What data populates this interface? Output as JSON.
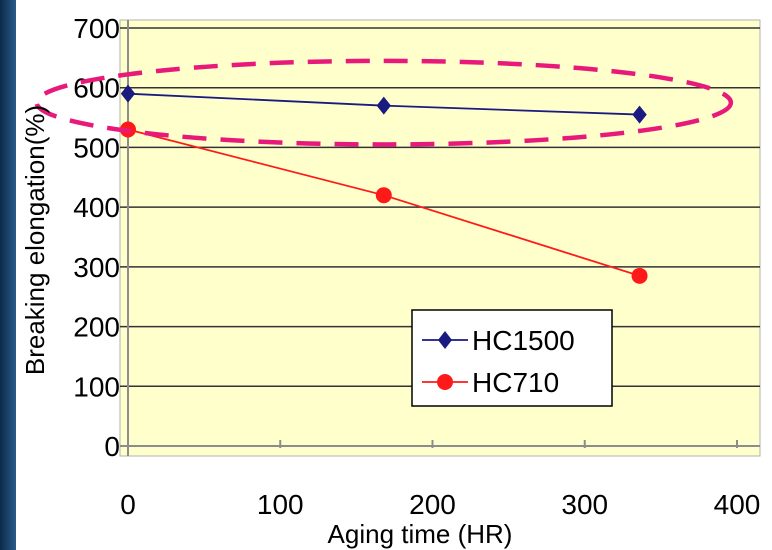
{
  "chart_data": {
    "type": "line",
    "title": "",
    "xlabel": "Aging time (HR)",
    "ylabel": "Breaking elongation(%)",
    "xlim": [
      0,
      400
    ],
    "ylim": [
      0,
      700
    ],
    "xticks": [
      0,
      100,
      200,
      300,
      400
    ],
    "yticks": [
      0,
      100,
      200,
      300,
      400,
      500,
      600,
      700
    ],
    "grid": "horizontal",
    "legend_position": "lower-right",
    "plot_background": "#ffffcc",
    "series": [
      {
        "name": "HC1500",
        "color": "#1a1a80",
        "marker": "diamond",
        "x": [
          0,
          168,
          336
        ],
        "y": [
          590,
          570,
          555
        ]
      },
      {
        "name": "HC710",
        "color": "#ff1a1a",
        "marker": "circle",
        "x": [
          0,
          168,
          336
        ],
        "y": [
          530,
          420,
          285
        ]
      }
    ],
    "annotation": {
      "shape": "dashed-ellipse",
      "color": "#e8197a",
      "center_x": 168,
      "center_y": 575,
      "radius_x": 228,
      "radius_y": 70
    }
  }
}
